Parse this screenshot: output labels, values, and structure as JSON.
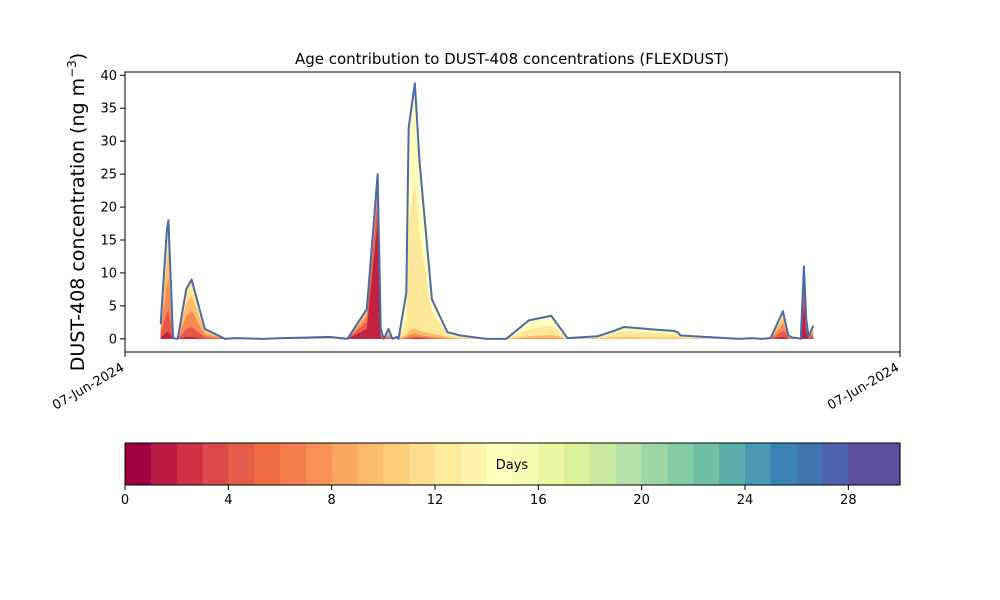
{
  "chart_data": {
    "type": "area",
    "title": "Age contribution to DUST-408 concentrations (FLEXDUST)",
    "ylabel": "DUST-408 concentration (ng m⁻³)",
    "ylabel_main": "DUST-408 concentration (ng m",
    "ylabel_sup": "−3",
    "ylabel_close": ")",
    "xlabel": "",
    "x_tick_labels": [
      "07-Jun-2024",
      "07-Jun-2024"
    ],
    "y_ticks": [
      0,
      5,
      10,
      15,
      20,
      25,
      30,
      35,
      40
    ],
    "ylim": [
      -2,
      40.5
    ],
    "xlim": [
      0,
      100
    ],
    "total_line_color": "#4a6aaa",
    "total": {
      "x": [
        4.6,
        5.4,
        5.6,
        6.2,
        6.8,
        7.9,
        8.6,
        10.3,
        12.9,
        14.2,
        17.9,
        20.2,
        23.9,
        26.4,
        28.7,
        31.2,
        32.6,
        33.0,
        33.4,
        34.0,
        34.5,
        35.1,
        35.3,
        36.3,
        36.6,
        37.4,
        38.0,
        39.6,
        41.6,
        43.3,
        46.6,
        49.2,
        52.1,
        55.0,
        57.1,
        61.0,
        63.1,
        64.4,
        68.4,
        70.8,
        71.3,
        71.7,
        77.6,
        79.3,
        80.9,
        82.1,
        83.3,
        84.9,
        85.3,
        85.6,
        86.1,
        86.8,
        87.2,
        87.6,
        87.9,
        88.2,
        88.8
      ],
      "y": [
        2.2,
        16.5,
        18.0,
        0.1,
        0.0,
        7.5,
        9.0,
        1.5,
        0.0,
        0.1,
        0.0,
        0.1,
        0.2,
        0.3,
        0.0,
        4.5,
        25.0,
        1.5,
        0.0,
        1.5,
        0.0,
        0.3,
        0.0,
        7.0,
        32.0,
        38.8,
        27.0,
        6.0,
        1.0,
        0.5,
        0.0,
        0.0,
        2.8,
        3.5,
        0.1,
        0.4,
        1.2,
        1.8,
        1.4,
        1.2,
        1.0,
        0.5,
        0.1,
        0.0,
        0.1,
        0.0,
        0.1,
        4.2,
        2.0,
        0.5,
        0.2,
        0.1,
        0.0,
        11.0,
        3.0,
        0.3,
        2.0
      ]
    },
    "age_layers": [
      {
        "max_age_days": 2,
        "color": "#c0233f",
        "y": [
          0.2,
          1.0,
          1.1,
          0,
          0,
          0.3,
          0.3,
          0,
          0,
          0,
          0,
          0,
          0,
          0,
          0,
          1.5,
          18.0,
          0.2,
          0,
          0,
          0,
          0,
          0,
          0,
          0,
          0.1,
          0.1,
          0,
          0,
          0,
          0,
          0,
          0,
          0,
          0,
          0,
          0,
          0,
          0,
          0,
          0,
          0,
          0,
          0,
          0,
          0,
          0,
          0.3,
          0.2,
          0,
          0,
          0,
          0,
          5.0,
          1.0,
          0,
          0.2
        ]
      },
      {
        "max_age_days": 5,
        "color": "#e8594a",
        "y": [
          0.8,
          4.0,
          4.5,
          0,
          0,
          1.5,
          1.8,
          0.3,
          0,
          0,
          0,
          0,
          0,
          0,
          0,
          2.6,
          21.0,
          0.5,
          0,
          0.3,
          0,
          0,
          0,
          0.1,
          0.2,
          0.3,
          0.3,
          0.1,
          0,
          0,
          0,
          0,
          0,
          0,
          0,
          0,
          0,
          0,
          0,
          0,
          0,
          0,
          0,
          0,
          0,
          0,
          0,
          1.2,
          0.8,
          0.1,
          0,
          0,
          0,
          7.5,
          1.8,
          0.1,
          0.6
        ]
      },
      {
        "max_age_days": 8,
        "color": "#f88a56",
        "y": [
          1.3,
          8.0,
          9.0,
          0.05,
          0,
          3.5,
          4.2,
          0.7,
          0,
          0,
          0,
          0,
          0,
          0,
          0,
          3.4,
          23.0,
          0.8,
          0,
          0.6,
          0,
          0.1,
          0,
          0.3,
          0.5,
          0.8,
          0.6,
          0.3,
          0.1,
          0,
          0,
          0,
          0.1,
          0.2,
          0,
          0,
          0,
          0,
          0,
          0,
          0,
          0,
          0,
          0,
          0,
          0,
          0,
          2.3,
          1.3,
          0.2,
          0.1,
          0,
          0,
          9.0,
          2.3,
          0.2,
          1.1
        ]
      },
      {
        "max_age_days": 11,
        "color": "#fdbd6c",
        "y": [
          1.8,
          12.0,
          13.5,
          0.05,
          0,
          5.5,
          6.6,
          1.1,
          0,
          0.05,
          0,
          0.05,
          0.1,
          0.1,
          0,
          4.0,
          24.0,
          1.1,
          0,
          1.0,
          0,
          0.2,
          0,
          0.6,
          1.2,
          1.6,
          1.2,
          0.8,
          0.3,
          0.1,
          0,
          0,
          0.4,
          0.6,
          0,
          0.1,
          0.2,
          0.3,
          0.2,
          0.2,
          0.2,
          0.1,
          0,
          0,
          0,
          0,
          0,
          3.3,
          1.7,
          0.3,
          0.1,
          0,
          0,
          10.2,
          2.7,
          0.2,
          1.6
        ]
      },
      {
        "max_age_days": 14,
        "color": "#fee99a",
        "y": [
          2.1,
          15.5,
          17.0,
          0.1,
          0,
          7.0,
          8.5,
          1.4,
          0,
          0.1,
          0,
          0.1,
          0.2,
          0.3,
          0,
          4.4,
          24.8,
          1.4,
          0,
          1.4,
          0,
          0.3,
          0,
          3.0,
          18.0,
          24.0,
          16.0,
          4.0,
          0.7,
          0.3,
          0,
          0,
          1.5,
          2.0,
          0.05,
          0.3,
          0.8,
          1.2,
          0.9,
          0.8,
          0.7,
          0.3,
          0.05,
          0,
          0.05,
          0,
          0.05,
          4.0,
          1.9,
          0.4,
          0.15,
          0.05,
          0,
          10.9,
          2.9,
          0.3,
          1.9
        ]
      }
    ],
    "colorbar": {
      "label": "Days",
      "range": [
        0,
        30
      ],
      "tick_values": [
        0,
        4,
        8,
        12,
        16,
        20,
        24,
        28
      ],
      "tick_labels": [
        "0",
        "4",
        "8",
        "12",
        "16",
        "20",
        "24",
        "28"
      ],
      "colors": [
        "#9e0142",
        "#b81b44",
        "#cf3246",
        "#dd4a4b",
        "#e55d4a",
        "#f06c44",
        "#f67e4b",
        "#fa9257",
        "#fca762",
        "#fdbb6c",
        "#fdcd7b",
        "#fedd8c",
        "#feea9b",
        "#fff4ac",
        "#ffffbe",
        "#f6fbb1",
        "#ebf7a2",
        "#dcf099",
        "#c9e99e",
        "#b3e0a4",
        "#9bd6a4",
        "#84cca5",
        "#6ec1a5",
        "#5cadaa",
        "#4a98b1",
        "#3b83b7",
        "#4374b2",
        "#4e63ac",
        "#5e4fa2",
        "#5b4f9f"
      ]
    }
  }
}
